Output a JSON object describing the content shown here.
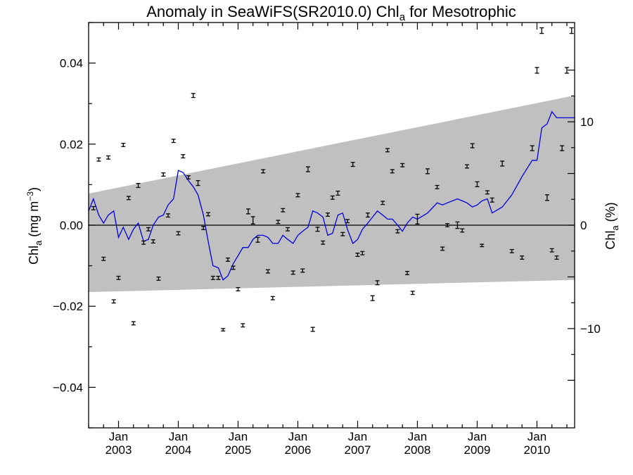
{
  "chart_data": {
    "type": "line",
    "title": "Anomaly in SeaWiFS(SR2010.0) Chl",
    "title_subscript": "a",
    "title_suffix": " for Mesotrophic",
    "ylabel_left": {
      "main": "Chl",
      "sub": "a",
      "rest": " (mg m",
      "sup": "−3",
      "end": ")"
    },
    "ylabel_right": {
      "main": "Chl",
      "sub": "a",
      "rest": " (%)"
    },
    "ylim": [
      -0.05,
      0.05
    ],
    "ylim_right_percent": [
      -19.6,
      19.6
    ],
    "xlim": [
      2002.5,
      2010.63
    ],
    "yticks_left": [
      "0.04",
      "0.02",
      "0.00",
      "−0.02",
      "−0.04"
    ],
    "yticks_left_values": [
      0.04,
      0.02,
      0.0,
      -0.02,
      -0.04
    ],
    "yticks_right": [
      "10",
      "0",
      "−10"
    ],
    "yticks_right_values": [
      10,
      0,
      -10
    ],
    "xticks": [
      {
        "month": "Jan",
        "year": "2003",
        "x": 2003.0
      },
      {
        "month": "Jan",
        "year": "2004",
        "x": 2004.0
      },
      {
        "month": "Jan",
        "year": "2005",
        "x": 2005.0
      },
      {
        "month": "Jan",
        "year": "2006",
        "x": 2006.0
      },
      {
        "month": "Jan",
        "year": "2007",
        "x": 2007.0
      },
      {
        "month": "Jan",
        "year": "2008",
        "x": 2008.0
      },
      {
        "month": "Jan",
        "year": "2009",
        "x": 2009.0
      },
      {
        "month": "Jan",
        "year": "2010",
        "x": 2010.0
      }
    ],
    "confidence_band": {
      "x": [
        2002.5,
        2010.63
      ],
      "upper": [
        0.0078,
        0.032
      ],
      "lower": [
        -0.0165,
        -0.0135
      ],
      "color": "#c0c0c0"
    },
    "zero_line": 0.0,
    "series": [
      {
        "type": "line",
        "color": "#0000dd",
        "x": [
          2002.5,
          2002.58,
          2002.67,
          2002.75,
          2002.83,
          2002.92,
          2003.0,
          2003.08,
          2003.17,
          2003.25,
          2003.33,
          2003.42,
          2003.5,
          2003.58,
          2003.67,
          2003.75,
          2003.83,
          2003.92,
          2004.0,
          2004.08,
          2004.17,
          2004.25,
          2004.33,
          2004.42,
          2004.5,
          2004.58,
          2004.67,
          2004.75,
          2004.83,
          2004.92,
          2005.0,
          2005.08,
          2005.17,
          2005.25,
          2005.33,
          2005.42,
          2005.5,
          2005.58,
          2005.67,
          2005.75,
          2005.83,
          2005.92,
          2006.0,
          2006.08,
          2006.17,
          2006.25,
          2006.33,
          2006.42,
          2006.5,
          2006.58,
          2006.67,
          2006.75,
          2006.83,
          2006.92,
          2007.0,
          2007.08,
          2007.17,
          2007.25,
          2007.33,
          2007.42,
          2007.5,
          2007.58,
          2007.67,
          2007.75,
          2007.83,
          2007.92,
          2008.0,
          2008.17,
          2008.33,
          2008.42,
          2008.5,
          2008.67,
          2008.75,
          2008.83,
          2008.92,
          2009.0,
          2009.08,
          2009.17,
          2009.25,
          2009.42,
          2009.58,
          2009.75,
          2009.92,
          2010.0,
          2010.08,
          2010.17,
          2010.25,
          2010.33,
          2010.42,
          2010.5,
          2010.58,
          2010.63
        ],
        "y": [
          0.0035,
          0.0065,
          0.0025,
          0.0005,
          0.0025,
          0.0035,
          -0.003,
          -0.0005,
          -0.0035,
          -0.001,
          0.0005,
          -0.004,
          -0.0035,
          0.0,
          0.002,
          0.0025,
          0.005,
          0.0065,
          0.0135,
          0.013,
          0.011,
          0.0095,
          0.0075,
          0.0025,
          -0.004,
          -0.01,
          -0.0105,
          -0.0135,
          -0.0125,
          -0.0095,
          -0.0075,
          -0.0055,
          -0.0055,
          -0.0035,
          -0.0025,
          -0.0025,
          -0.003,
          -0.0045,
          -0.0045,
          -0.0025,
          -0.0035,
          -0.0045,
          -0.0025,
          -0.0015,
          -0.0005,
          0.0035,
          0.003,
          0.002,
          -0.0025,
          -0.002,
          0.0025,
          0.003,
          -0.001,
          -0.0045,
          -0.0035,
          -0.001,
          0.0005,
          0.002,
          0.0035,
          0.0025,
          0.0015,
          0.0015,
          0.0,
          -0.0015,
          0.0005,
          0.002,
          0.0015,
          0.003,
          0.0055,
          0.005,
          0.0055,
          0.0065,
          0.006,
          0.0055,
          0.0045,
          0.005,
          0.006,
          0.0065,
          0.003,
          0.0045,
          0.0075,
          0.012,
          0.016,
          0.016,
          0.024,
          0.025,
          0.028,
          0.0265,
          0.0265,
          0.0265,
          0.0265,
          0.0265
        ]
      },
      {
        "type": "errorbar",
        "color": "#000000",
        "x": [
          2002.58,
          2002.67,
          2002.75,
          2002.83,
          2002.92,
          2003.0,
          2003.08,
          2003.17,
          2003.25,
          2003.33,
          2003.42,
          2003.5,
          2003.58,
          2003.67,
          2003.75,
          2003.83,
          2003.92,
          2004.0,
          2004.08,
          2004.17,
          2004.25,
          2004.33,
          2004.42,
          2004.5,
          2004.58,
          2004.67,
          2004.75,
          2004.83,
          2004.92,
          2005.0,
          2005.08,
          2005.17,
          2005.25,
          2005.33,
          2005.42,
          2005.5,
          2005.58,
          2005.67,
          2005.75,
          2005.83,
          2005.92,
          2006.0,
          2006.08,
          2006.17,
          2006.25,
          2006.33,
          2006.42,
          2006.5,
          2006.58,
          2006.67,
          2006.75,
          2006.83,
          2006.92,
          2007.0,
          2007.08,
          2007.17,
          2007.25,
          2007.33,
          2007.42,
          2007.5,
          2007.58,
          2007.67,
          2007.75,
          2007.83,
          2007.92,
          2008.0,
          2008.17,
          2008.33,
          2008.42,
          2008.5,
          2008.67,
          2008.75,
          2008.83,
          2008.92,
          2009.0,
          2009.08,
          2009.17,
          2009.25,
          2009.42,
          2009.58,
          2009.75,
          2009.92,
          2010.0,
          2010.08,
          2010.17,
          2010.25,
          2010.33,
          2010.42,
          2010.5,
          2010.58
        ],
        "y": [
          0.0042,
          0.0162,
          -0.0083,
          0.0167,
          -0.0188,
          -0.013,
          0.0198,
          0.0067,
          -0.0242,
          0.0098,
          -0.0043,
          -0.001,
          -0.004,
          -0.0132,
          0.0125,
          0.0024,
          0.0208,
          -0.002,
          0.017,
          0.0118,
          0.032,
          0.0104,
          -0.0007,
          0.0027,
          -0.013,
          -0.013,
          -0.0258,
          -0.0085,
          -0.0105,
          -0.0158,
          -0.0247,
          0.0034,
          0.0012,
          -0.0036,
          0.0133,
          -0.0114,
          -0.018,
          0.0008,
          0.0037,
          -0.001,
          -0.0117,
          0.0074,
          -0.0112,
          0.0138,
          -0.0257,
          -0.001,
          -0.0043,
          0.0026,
          0.0068,
          0.0079,
          -0.0022,
          0.001,
          0.015,
          -0.0073,
          -0.0069,
          0.0025,
          -0.018,
          -0.0142,
          0.0055,
          0.0185,
          0.0133,
          -0.0015,
          0.0148,
          -0.0118,
          -0.0167,
          0.0015,
          0.0133,
          0.0094,
          -0.0058,
          0.0,
          0.0,
          -0.0013,
          0.0145,
          0.0196,
          0.0101,
          -0.005,
          0.0081,
          0.0062,
          0.0152,
          -0.0064,
          -0.008,
          0.019,
          0.0382,
          0.048,
          0.0068,
          -0.0062,
          -0.008,
          0.019,
          0.0382,
          0.048
        ],
        "err": [
          0.0004,
          0.0004,
          0.0004,
          0.0004,
          0.0004,
          0.0004,
          0.0004,
          0.0004,
          0.0004,
          0.0005,
          0.0004,
          0.0004,
          0.0004,
          0.0004,
          0.0004,
          0.0004,
          0.0004,
          0.0004,
          0.0004,
          0.0004,
          0.0005,
          0.0006,
          0.0004,
          0.0004,
          0.0004,
          0.0004,
          0.0003,
          0.0004,
          0.0004,
          0.0004,
          0.0004,
          0.0006,
          0.0009,
          0.0006,
          0.0004,
          0.0004,
          0.0004,
          0.0004,
          0.0004,
          0.0004,
          0.0004,
          0.0004,
          0.0004,
          0.0006,
          0.0005,
          0.0005,
          0.0004,
          0.0004,
          0.0004,
          0.0005,
          0.0004,
          0.0004,
          0.0005,
          0.0004,
          0.0004,
          0.0005,
          0.0006,
          0.0005,
          0.0004,
          0.0004,
          0.0004,
          0.0004,
          0.0004,
          0.0004,
          0.0004,
          0.0012,
          0.0006,
          0.0004,
          0.0004,
          0.0004,
          0.0008,
          0.0004,
          0.0004,
          0.0005,
          0.0006,
          0.0003,
          0.0004,
          0.0005,
          0.0006,
          0.0004,
          0.0004,
          0.0006,
          0.0007,
          0.0007,
          0.0007,
          0.0004,
          0.0004,
          0.0006,
          0.0007,
          0.0007
        ]
      }
    ],
    "grid": false,
    "legend": "none"
  }
}
